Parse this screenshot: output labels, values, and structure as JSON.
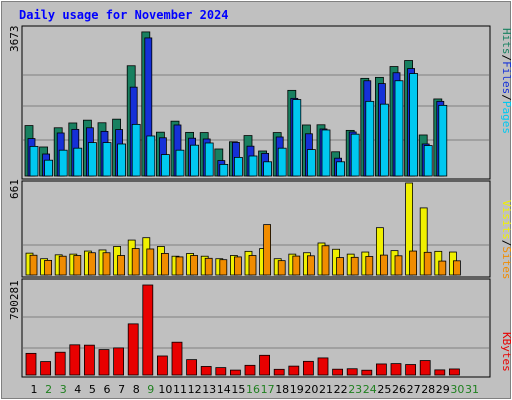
{
  "chart_data": [
    {
      "type": "bar",
      "title": "Daily usage for November 2024",
      "ymax_label": "3673",
      "ymax": 3673,
      "legend": [
        {
          "label": "Pages",
          "color": "#00c8f0"
        },
        {
          "label": "Files",
          "color": "#1530d8"
        },
        {
          "label": "Hits",
          "color": "#188060"
        }
      ],
      "separator": "/",
      "x": [
        1,
        2,
        3,
        4,
        5,
        6,
        7,
        8,
        9,
        10,
        11,
        12,
        13,
        14,
        15,
        16,
        17,
        18,
        19,
        20,
        21,
        22,
        23,
        24,
        25,
        26,
        27,
        28,
        29,
        30,
        31
      ],
      "series": [
        {
          "name": "Hits",
          "values": [
            1260,
            725,
            1205,
            1325,
            1395,
            1330,
            1420,
            2755,
            3600,
            1095,
            1370,
            1090,
            1085,
            675,
            855,
            1010,
            625,
            1085,
            2140,
            1275,
            1280,
            605,
            1140,
            2440,
            2465,
            2735,
            2885,
            1025,
            1925,
            0,
            0
          ]
        },
        {
          "name": "Files",
          "values": [
            935,
            550,
            1075,
            1165,
            1205,
            1115,
            1160,
            2220,
            3450,
            955,
            1275,
            945,
            925,
            385,
            840,
            745,
            565,
            975,
            1940,
            1055,
            1175,
            445,
            1100,
            2380,
            2310,
            2580,
            2685,
            800,
            1865,
            0,
            0
          ]
        },
        {
          "name": "Pages",
          "values": [
            740,
            395,
            645,
            695,
            835,
            835,
            800,
            1290,
            1000,
            535,
            645,
            770,
            825,
            290,
            465,
            500,
            355,
            695,
            1910,
            660,
            1150,
            355,
            1045,
            1865,
            1795,
            2380,
            2560,
            760,
            1765,
            0,
            0
          ]
        }
      ]
    },
    {
      "type": "bar",
      "ymax_label": "661",
      "ymax": 661,
      "legend": [
        {
          "label": "Sites",
          "color": "#f08c00"
        },
        {
          "label": "Visits",
          "color": "#f0f000"
        }
      ],
      "separator": "/",
      "x": [
        1,
        2,
        3,
        4,
        5,
        6,
        7,
        8,
        9,
        10,
        11,
        12,
        13,
        14,
        15,
        16,
        17,
        18,
        19,
        20,
        21,
        22,
        23,
        24,
        25,
        26,
        27,
        28,
        29,
        30,
        31
      ],
      "series": [
        {
          "name": "Visits",
          "values": [
            157,
            117,
            145,
            150,
            172,
            180,
            205,
            251,
            268,
            205,
            135,
            155,
            135,
            117,
            140,
            170,
            190,
            117,
            150,
            160,
            230,
            185,
            150,
            165,
            340,
            175,
            661,
            482,
            170,
            165,
            0
          ]
        },
        {
          "name": "Sites",
          "values": [
            142,
            105,
            135,
            140,
            160,
            160,
            140,
            190,
            187,
            155,
            130,
            140,
            120,
            110,
            130,
            140,
            362,
            103,
            136,
            138,
            210,
            125,
            127,
            133,
            143,
            138,
            172,
            163,
            100,
            102,
            0
          ]
        }
      ]
    },
    {
      "type": "bar",
      "ymax_label": "790281",
      "ymax": 790281,
      "legend": [
        {
          "label": "KBytes",
          "color": "#e80000"
        }
      ],
      "x": [
        1,
        2,
        3,
        4,
        5,
        6,
        7,
        8,
        9,
        10,
        11,
        12,
        13,
        14,
        15,
        16,
        17,
        18,
        19,
        20,
        21,
        22,
        23,
        24,
        25,
        26,
        27,
        28,
        29,
        30,
        31
      ],
      "series": [
        {
          "name": "KBytes",
          "values": [
            190000,
            118000,
            200000,
            265000,
            262000,
            223000,
            238000,
            449000,
            790281,
            167000,
            288000,
            135000,
            75000,
            65000,
            43000,
            85000,
            173000,
            50000,
            78000,
            120000,
            150000,
            51000,
            55000,
            42000,
            97000,
            100000,
            92000,
            127000,
            45000,
            53000,
            0
          ]
        }
      ]
    }
  ],
  "day_label_colors": {
    "weekday": "#000000",
    "weekend": "#208020"
  },
  "weekend_days": [
    2,
    3,
    9,
    16,
    17,
    23,
    24,
    30,
    31
  ]
}
